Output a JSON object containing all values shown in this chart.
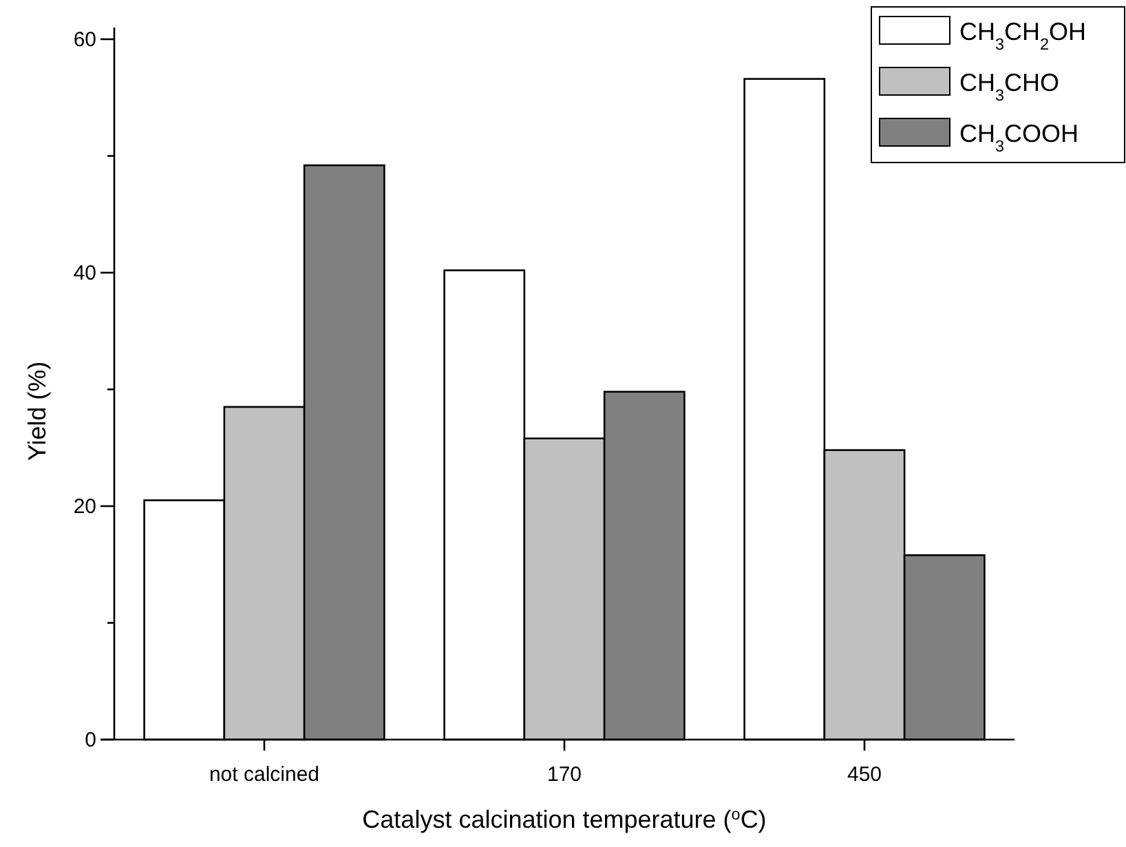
{
  "chart_data": {
    "type": "bar",
    "xlabel": "Catalyst calcination temperature ($^{o}$C)",
    "ylabel": "Yield (%)",
    "categories": [
      "not calcined",
      "170",
      "450"
    ],
    "series": [
      {
        "name": "CH$_{3}$CH$_{2}$OH",
        "color": "#ffffff",
        "values": [
          20.5,
          40.2,
          56.6
        ]
      },
      {
        "name": "CH$_{3}$CHO",
        "color": "#c0c0c0",
        "values": [
          28.5,
          25.8,
          24.8
        ]
      },
      {
        "name": "CH$_{3}$COOH",
        "color": "#808080",
        "values": [
          49.2,
          29.8,
          15.8
        ]
      }
    ],
    "ylim": [
      0,
      61
    ],
    "yticks": [
      0,
      {
        "value": 10,
        "label": null
      },
      20,
      {
        "value": 30,
        "label": null
      },
      40,
      {
        "value": 50,
        "label": null
      },
      60
    ],
    "grid": false,
    "legend": "top right"
  }
}
